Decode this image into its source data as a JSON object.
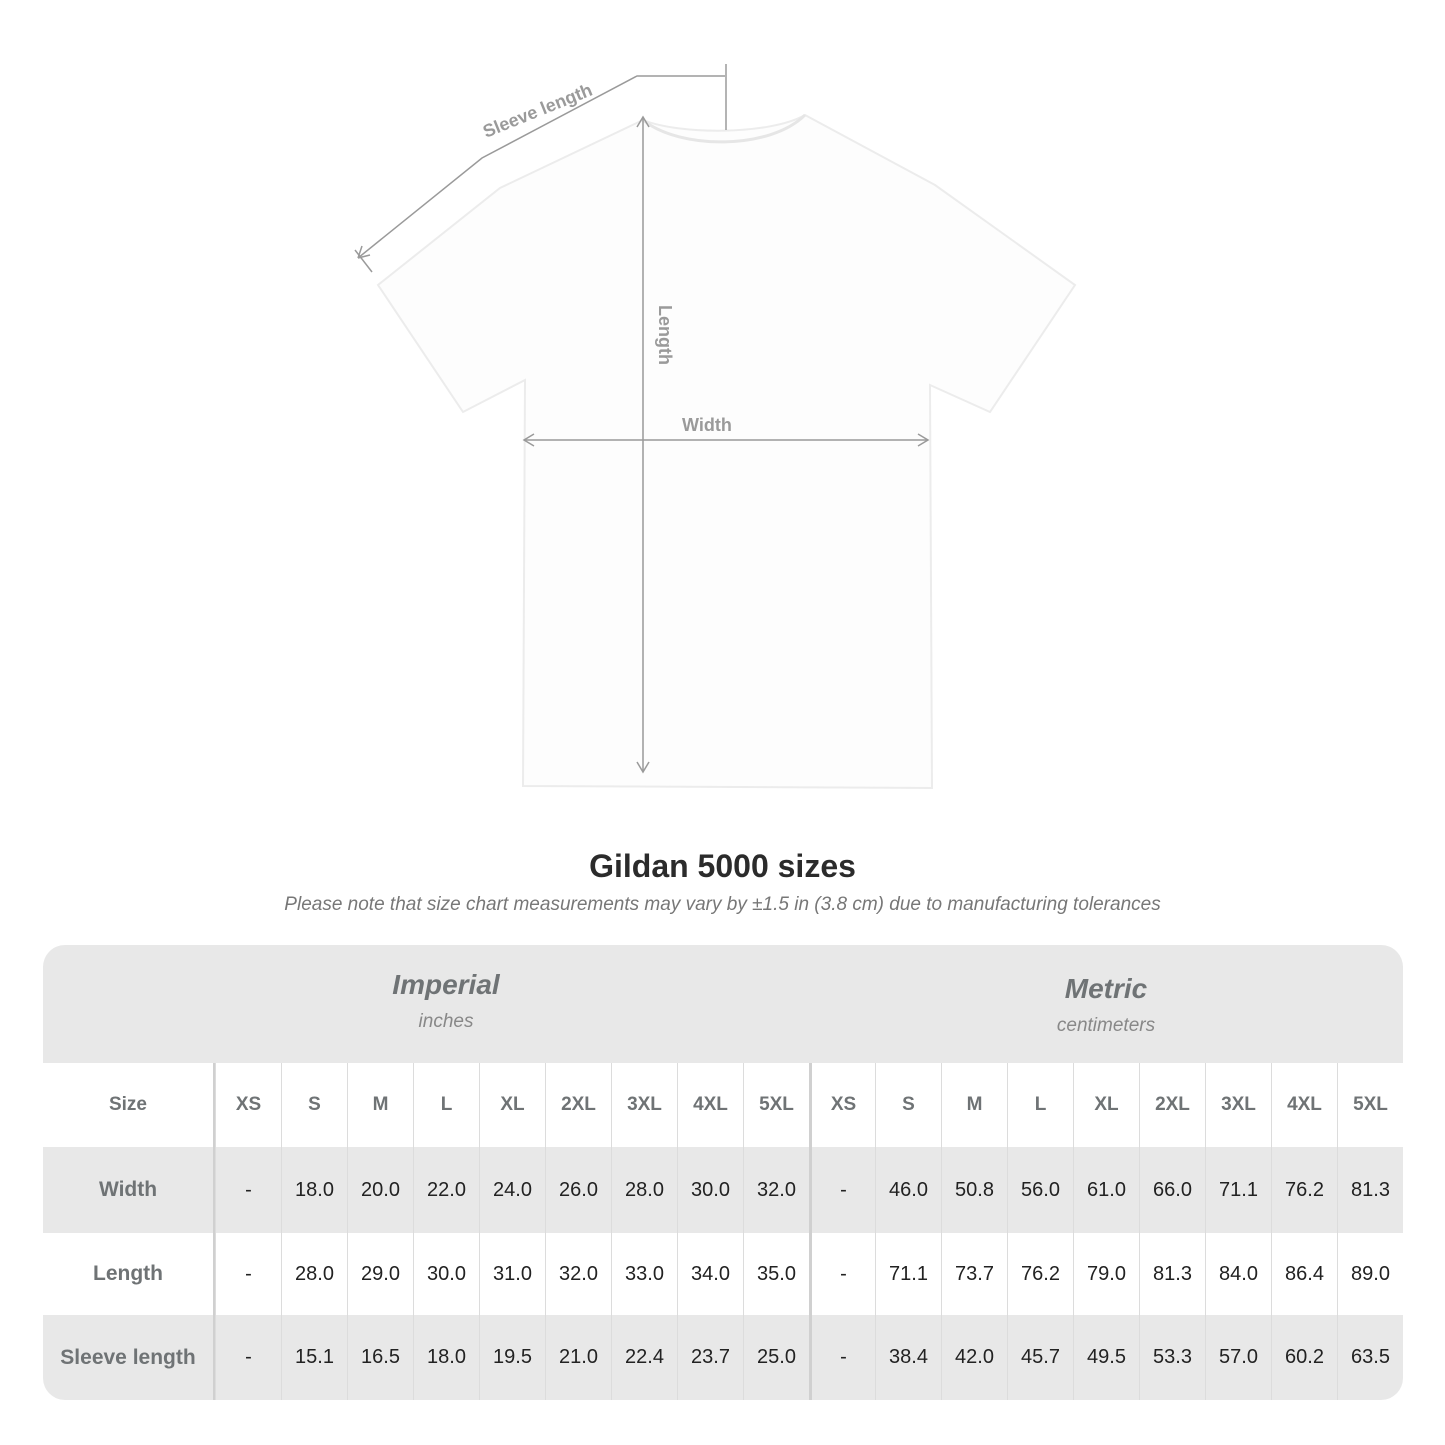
{
  "diagram": {
    "labels": {
      "sleeve": "Sleeve length",
      "length": "Length",
      "width": "Width"
    },
    "line_color": "#9a9a9a"
  },
  "title": "Gildan 5000 sizes",
  "note": "Please note that size chart measurements may vary by ±1.5 in (3.8 cm) due to manufacturing tolerances",
  "table": {
    "imperial": {
      "title": "Imperial",
      "unit": "inches"
    },
    "metric": {
      "title": "Metric",
      "unit": "centimeters"
    },
    "header_label": "Size",
    "sizes": [
      "XS",
      "S",
      "M",
      "L",
      "XL",
      "2XL",
      "3XL",
      "4XL",
      "5XL"
    ],
    "rows": [
      {
        "label": "Width",
        "imperial": [
          "-",
          "18.0",
          "20.0",
          "22.0",
          "24.0",
          "26.0",
          "28.0",
          "30.0",
          "32.0"
        ],
        "metric": [
          "-",
          "46.0",
          "50.8",
          "56.0",
          "61.0",
          "66.0",
          "71.1",
          "76.2",
          "81.3"
        ]
      },
      {
        "label": "Length",
        "imperial": [
          "-",
          "28.0",
          "29.0",
          "30.0",
          "31.0",
          "32.0",
          "33.0",
          "34.0",
          "35.0"
        ],
        "metric": [
          "-",
          "71.1",
          "73.7",
          "76.2",
          "79.0",
          "81.3",
          "84.0",
          "86.4",
          "89.0"
        ]
      },
      {
        "label": "Sleeve length",
        "imperial": [
          "-",
          "15.1",
          "16.5",
          "18.0",
          "19.5",
          "21.0",
          "22.4",
          "23.7",
          "25.0"
        ],
        "metric": [
          "-",
          "38.4",
          "42.0",
          "45.7",
          "49.5",
          "53.3",
          "57.0",
          "60.2",
          "63.5"
        ]
      }
    ],
    "band_color": "#e8e8e8"
  }
}
